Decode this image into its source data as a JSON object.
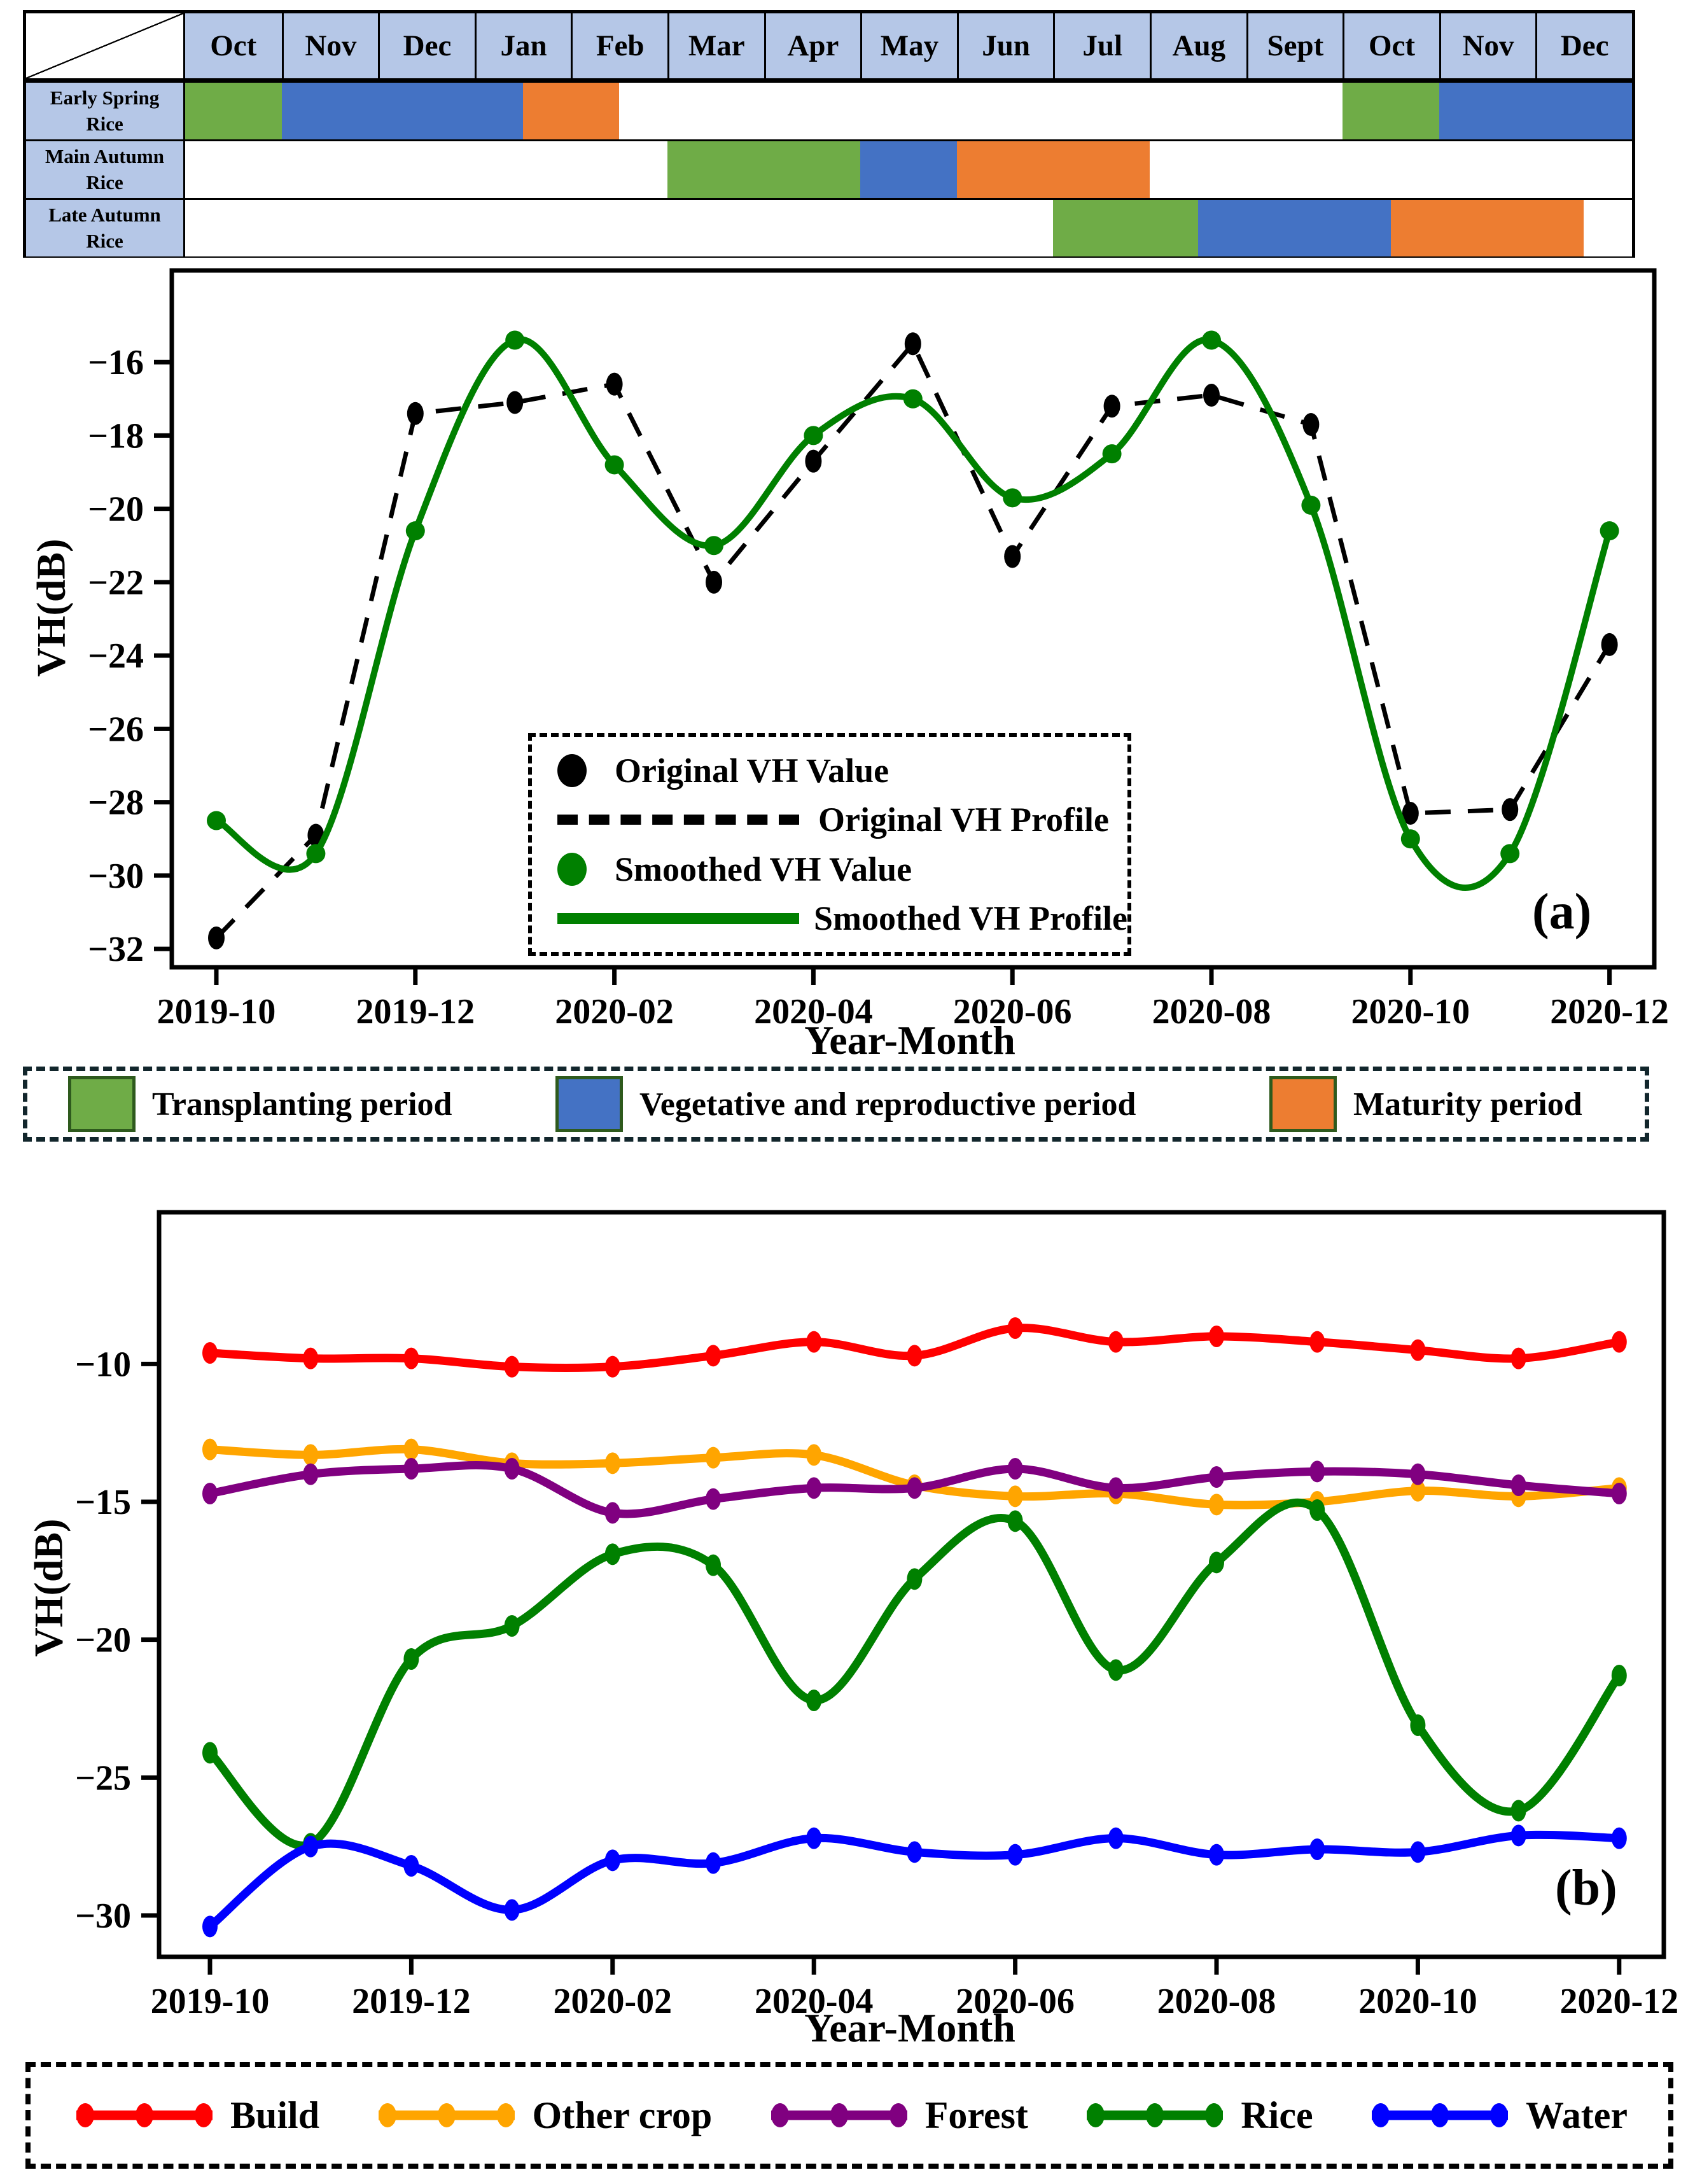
{
  "calendar": {
    "months": [
      "Oct",
      "Nov",
      "Dec",
      "Jan",
      "Feb",
      "Mar",
      "Apr",
      "May",
      "Jun",
      "Jul",
      "Aug",
      "Sept",
      "Oct",
      "Nov",
      "Dec"
    ],
    "header_fill": "#B5C7E7",
    "period_colors": {
      "transplanting": "#6FAC47",
      "vegetative": "#4472C4",
      "maturity": "#ED7D31"
    },
    "rows": [
      {
        "label": "Early Spring Rice",
        "bars": [
          {
            "period": "transplanting",
            "start": 0,
            "end": 1
          },
          {
            "period": "vegetative",
            "start": 1,
            "end": 3.5
          },
          {
            "period": "maturity",
            "start": 3.5,
            "end": 4.5
          },
          {
            "period": "transplanting",
            "start": 12,
            "end": 13
          },
          {
            "period": "vegetative",
            "start": 13,
            "end": 15
          }
        ]
      },
      {
        "label": "Main Autumn Rice",
        "bars": [
          {
            "period": "transplanting",
            "start": 5,
            "end": 7
          },
          {
            "period": "vegetative",
            "start": 7,
            "end": 8
          },
          {
            "period": "maturity",
            "start": 8,
            "end": 10
          }
        ]
      },
      {
        "label": "Late Autumn Rice",
        "bars": [
          {
            "period": "transplanting",
            "start": 9,
            "end": 10.5
          },
          {
            "period": "vegetative",
            "start": 10.5,
            "end": 12.5
          },
          {
            "period": "maturity",
            "start": 12.5,
            "end": 14.5
          }
        ]
      }
    ]
  },
  "period_legend": {
    "items": [
      {
        "label": "Transplanting period",
        "color": "#6FAC47"
      },
      {
        "label": "Vegetative and reproductive period",
        "color": "#4472C4"
      },
      {
        "label": "Maturity period",
        "color": "#ED7D31"
      }
    ]
  },
  "chart_data": [
    {
      "id": "a",
      "type": "line",
      "panel_label": "(a)",
      "xlabel": "Year-Month",
      "ylabel": "VH(dB)",
      "x": [
        "2019-10",
        "2019-11",
        "2019-12",
        "2020-01",
        "2020-02",
        "2020-03",
        "2020-04",
        "2020-05",
        "2020-06",
        "2020-07",
        "2020-08",
        "2020-09",
        "2020-10",
        "2020-11",
        "2020-12"
      ],
      "x_tick_labels": [
        "2019-10",
        "2019-12",
        "2020-02",
        "2020-04",
        "2020-06",
        "2020-08",
        "2020-10",
        "2020-12"
      ],
      "y_ticks": [
        -16,
        -18,
        -20,
        -22,
        -24,
        -26,
        -28,
        -30,
        -32
      ],
      "ylim": [
        -32.5,
        -13.5
      ],
      "grid": false,
      "series": [
        {
          "name": "Original VH",
          "color": "#000000",
          "line_style": "dashed",
          "smooth": false,
          "values": [
            -31.7,
            -28.9,
            -17.4,
            -17.1,
            -16.6,
            -22.0,
            -18.7,
            -15.5,
            -21.3,
            -17.2,
            -16.9,
            -17.7,
            -28.3,
            -28.2,
            -23.7
          ]
        },
        {
          "name": "Smoothed VH",
          "color": "#008000",
          "line_style": "solid",
          "smooth": true,
          "values": [
            -28.5,
            -29.4,
            -20.6,
            -15.4,
            -18.8,
            -21.0,
            -18.0,
            -17.0,
            -19.7,
            -18.5,
            -15.4,
            -19.9,
            -29.0,
            -29.4,
            -20.6
          ]
        }
      ],
      "legend": [
        {
          "label": "Original VH Value",
          "marker": "dot",
          "color": "#000000"
        },
        {
          "label": "Original VH Profile",
          "marker": "dashed_line",
          "color": "#000000"
        },
        {
          "label": "Smoothed VH Value",
          "marker": "dot",
          "color": "#008000"
        },
        {
          "label": "Smoothed VH Profile",
          "marker": "solid_line",
          "color": "#008000"
        }
      ]
    },
    {
      "id": "b",
      "type": "line",
      "panel_label": "(b)",
      "xlabel": "Year-Month",
      "ylabel": "VH(dB)",
      "x": [
        "2019-10",
        "2019-11",
        "2019-12",
        "2020-01",
        "2020-02",
        "2020-03",
        "2020-04",
        "2020-05",
        "2020-06",
        "2020-07",
        "2020-08",
        "2020-09",
        "2020-10",
        "2020-11",
        "2020-12"
      ],
      "x_tick_labels": [
        "2019-10",
        "2019-12",
        "2020-02",
        "2020-04",
        "2020-06",
        "2020-08",
        "2020-10",
        "2020-12"
      ],
      "y_ticks": [
        -10,
        -15,
        -20,
        -25,
        -30
      ],
      "ylim": [
        -31.5,
        -4.5
      ],
      "grid": false,
      "series": [
        {
          "name": "Build",
          "color": "#FF0000",
          "line_style": "solid",
          "smooth": true,
          "values": [
            -9.6,
            -9.8,
            -9.8,
            -10.1,
            -10.1,
            -9.7,
            -9.2,
            -9.7,
            -8.7,
            -9.2,
            -9.0,
            -9.2,
            -9.5,
            -9.8,
            -9.2
          ]
        },
        {
          "name": "Other crop",
          "color": "#FFA500",
          "line_style": "solid",
          "smooth": true,
          "values": [
            -13.1,
            -13.3,
            -13.1,
            -13.6,
            -13.6,
            -13.4,
            -13.3,
            -14.4,
            -14.8,
            -14.7,
            -15.1,
            -15.0,
            -14.6,
            -14.8,
            -14.5
          ]
        },
        {
          "name": "Forest",
          "color": "#800080",
          "line_style": "solid",
          "smooth": true,
          "values": [
            -14.7,
            -14.0,
            -13.8,
            -13.8,
            -15.4,
            -14.9,
            -14.5,
            -14.5,
            -13.8,
            -14.5,
            -14.1,
            -13.9,
            -14.0,
            -14.4,
            -14.7
          ]
        },
        {
          "name": "Rice",
          "color": "#008000",
          "line_style": "solid",
          "smooth": true,
          "values": [
            -24.1,
            -27.4,
            -20.7,
            -19.5,
            -16.9,
            -17.3,
            -22.2,
            -17.8,
            -15.7,
            -21.1,
            -17.2,
            -15.3,
            -23.1,
            -26.2,
            -21.3
          ]
        },
        {
          "name": "Water",
          "color": "#0000FF",
          "line_style": "solid",
          "smooth": true,
          "values": [
            -30.4,
            -27.5,
            -28.2,
            -29.8,
            -28.0,
            -28.1,
            -27.2,
            -27.7,
            -27.8,
            -27.2,
            -27.8,
            -27.6,
            -27.7,
            -27.1,
            -27.2
          ]
        }
      ]
    }
  ]
}
